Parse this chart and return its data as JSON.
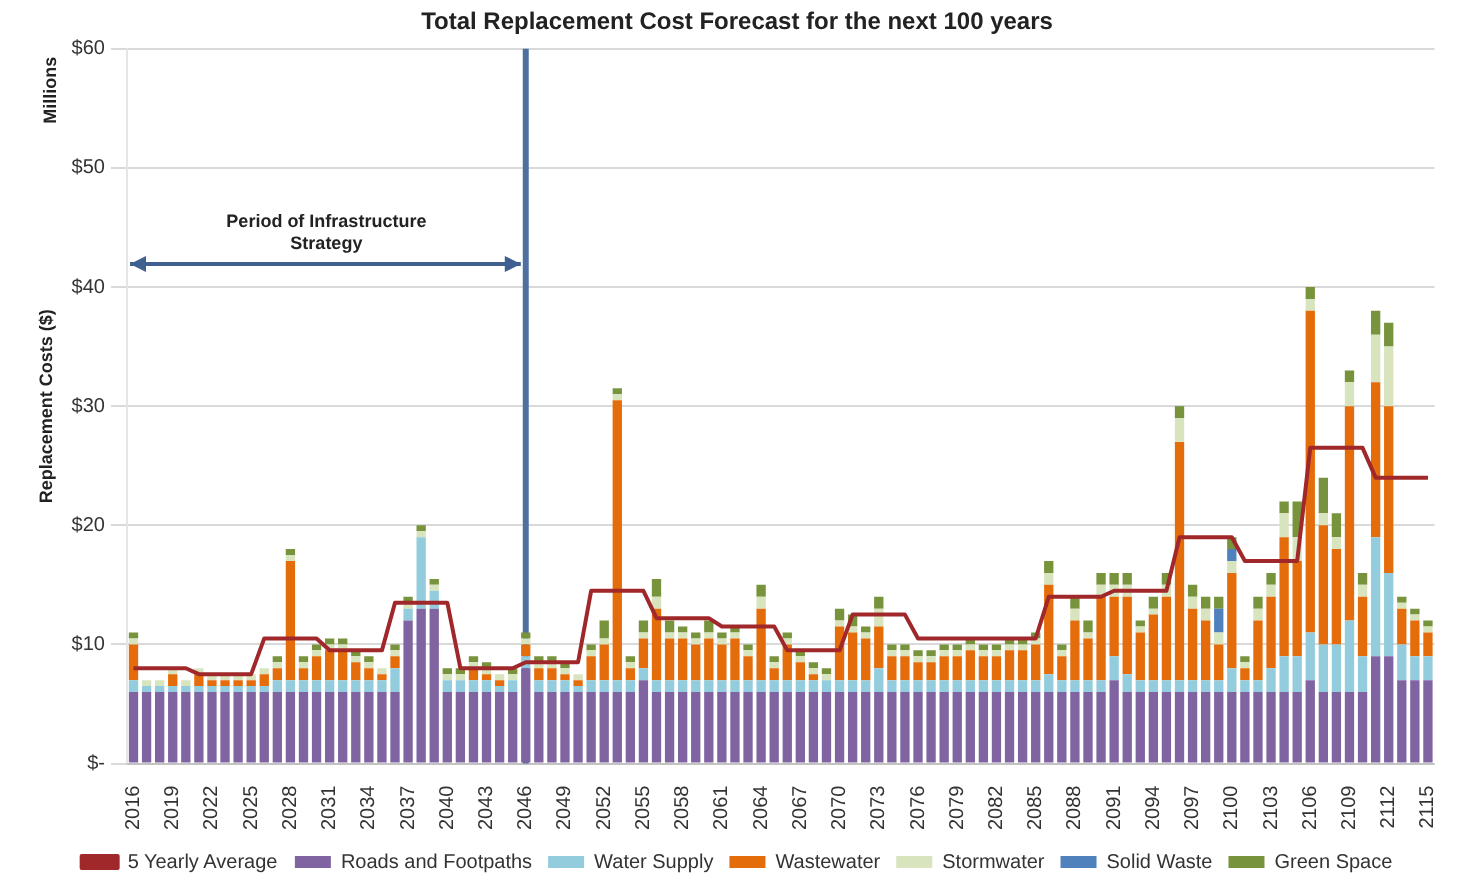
{
  "chart_data": {
    "type": "bar",
    "title": "Total Replacement Cost Forecast for the next 100 years",
    "ylabel": "Replacement Costs ($)",
    "annotations": [
      "Millions",
      "Period of Infrastructure Strategy"
    ],
    "categories": [
      "2016",
      null,
      null,
      "2019",
      null,
      null,
      "2022",
      null,
      null,
      "2025",
      null,
      null,
      "2028",
      null,
      null,
      "2031",
      null,
      null,
      "2034",
      null,
      null,
      "2037",
      null,
      null,
      "2040",
      null,
      null,
      "2043",
      null,
      null,
      "2046",
      null,
      null,
      "2049",
      null,
      null,
      "2052",
      null,
      null,
      "2055",
      null,
      null,
      "2058",
      null,
      null,
      "2061",
      null,
      null,
      "2064",
      null,
      null,
      "2067",
      null,
      null,
      "2070",
      null,
      null,
      "2073",
      null,
      null,
      "2076",
      null,
      null,
      "2079",
      null,
      null,
      "2082",
      null,
      null,
      "2085",
      null,
      null,
      "2088",
      null,
      null,
      "2091",
      null,
      null,
      "2094",
      null,
      null,
      "2097",
      null,
      null,
      "2100",
      null,
      null,
      "2103",
      null,
      null,
      "2106",
      null,
      null,
      "2109",
      null,
      null,
      "2112",
      null,
      null,
      "2115"
    ],
    "stacked": true,
    "ylim": [
      0,
      60
    ],
    "yticks": [
      {
        "value": 0,
        "label": "$-"
      },
      {
        "value": 10,
        "label": "$10"
      },
      {
        "value": 20,
        "label": "$20"
      },
      {
        "value": 30,
        "label": "$30"
      },
      {
        "value": 40,
        "label": "$40"
      },
      {
        "value": 50,
        "label": "$50"
      },
      {
        "value": 60,
        "label": "$60"
      }
    ],
    "grid": "y",
    "legend": "bottom",
    "ref_lines": [
      {
        "axis": "x",
        "value": "2046",
        "color": "#4f6fa0"
      }
    ],
    "series": [
      {
        "name": "Roads and Footpaths",
        "color": "#8064a2",
        "values": [
          6,
          6,
          6,
          6,
          6,
          6,
          6,
          6,
          6,
          6,
          6,
          6,
          6,
          6,
          6,
          6,
          6,
          6,
          6,
          6,
          6,
          12,
          13,
          13,
          6,
          6,
          6,
          6,
          6,
          6,
          8,
          6,
          6,
          6,
          6,
          6,
          6,
          6,
          6,
          7,
          6,
          6,
          6,
          6,
          6,
          6,
          6,
          6,
          6,
          6,
          6,
          6,
          6,
          6,
          6,
          6,
          6,
          6,
          6,
          6,
          6,
          6,
          6,
          6,
          6,
          6,
          6,
          6,
          6,
          6,
          6,
          6,
          6,
          6,
          6,
          7,
          6,
          6,
          6,
          6,
          6,
          6,
          6,
          6,
          6,
          6,
          6,
          6,
          6,
          6,
          7,
          6,
          6,
          6,
          6,
          9,
          9,
          7,
          7,
          7
        ]
      },
      {
        "name": "Water Supply",
        "color": "#93cddd",
        "values": [
          1,
          0.5,
          0.5,
          0.5,
          0.5,
          0.5,
          0.5,
          0.5,
          0.5,
          0.5,
          0.5,
          1,
          1,
          1,
          1,
          1,
          1,
          1,
          1,
          1,
          2,
          1,
          6,
          1.5,
          1,
          1,
          1,
          1,
          0.5,
          1,
          1,
          1,
          1,
          1,
          0.5,
          1,
          1,
          1,
          1,
          1,
          1,
          1,
          1,
          1,
          1,
          1,
          1,
          1,
          1,
          1,
          1,
          1,
          1,
          1,
          1,
          1,
          1,
          2,
          1,
          1,
          1,
          1,
          1,
          1,
          1,
          1,
          1,
          1,
          1,
          1,
          1.5,
          1,
          1,
          1,
          1,
          2,
          1.5,
          1,
          1,
          1,
          1,
          1,
          1,
          1,
          2,
          1,
          1,
          2,
          3,
          3,
          4,
          4,
          4,
          6,
          3,
          10,
          7,
          3,
          2,
          2
        ]
      },
      {
        "name": "Wastewater",
        "color": "#e46c0a",
        "values": [
          3,
          0,
          0,
          1,
          0,
          1,
          0.5,
          0.5,
          0.5,
          0.5,
          1,
          1,
          10,
          1,
          2,
          2.5,
          2.5,
          1.5,
          1,
          0.5,
          1,
          0,
          0,
          0,
          0,
          0,
          1,
          0.5,
          0.5,
          0,
          1,
          1,
          1,
          0.5,
          0.5,
          2,
          3,
          23.5,
          1,
          2.5,
          6,
          3.5,
          3.5,
          3,
          3.5,
          3,
          3.5,
          2,
          6,
          1,
          3,
          1.5,
          0.5,
          0,
          4.5,
          4,
          3.5,
          3.5,
          2,
          2,
          1.5,
          1.5,
          2,
          2,
          2.5,
          2,
          2,
          2.5,
          2.5,
          3,
          7.5,
          2,
          5,
          3.5,
          7,
          5,
          6.5,
          4,
          5.5,
          7,
          20,
          6,
          5,
          3,
          8,
          1,
          5,
          6,
          10,
          8,
          27,
          10,
          8,
          18,
          5,
          13,
          14,
          3,
          3,
          2
        ]
      },
      {
        "name": "Stormwater",
        "color": "#d7e4bd",
        "values": [
          0.5,
          0.5,
          0.5,
          0.5,
          0.5,
          0.5,
          0.5,
          0.5,
          0.5,
          0.5,
          0.5,
          0.5,
          0.5,
          0.5,
          0.5,
          0.5,
          0.5,
          0.5,
          0.5,
          0.5,
          0.5,
          0.5,
          0.5,
          0.5,
          0.5,
          0.5,
          0.5,
          0.5,
          0.5,
          0.5,
          0.5,
          0.5,
          0.5,
          0.5,
          0.5,
          0.5,
          0.5,
          0.5,
          0.5,
          0.5,
          1,
          0.5,
          0.5,
          0.5,
          0.5,
          0.5,
          0.5,
          0.5,
          1,
          0.5,
          0.5,
          0.5,
          0.5,
          0.5,
          0.5,
          0.5,
          0.5,
          1.5,
          0.5,
          0.5,
          0.5,
          0.5,
          0.5,
          0.5,
          0.5,
          0.5,
          0.5,
          0.5,
          0.5,
          0.5,
          1,
          0.5,
          1,
          0.5,
          1,
          1,
          1,
          0.5,
          0.5,
          1,
          2,
          1,
          1,
          1,
          1,
          0.5,
          1,
          1,
          2,
          2,
          1,
          1,
          1,
          2,
          1,
          4,
          5,
          0.5,
          0.5,
          0.5
        ]
      },
      {
        "name": "Solid Waste",
        "color": "#4f81bd",
        "values": [
          0,
          0,
          0,
          0,
          0,
          0,
          0,
          0,
          0,
          0,
          0,
          0,
          0,
          0,
          0,
          0,
          0,
          0,
          0,
          0,
          0,
          0,
          0,
          0,
          0,
          0,
          0,
          0,
          0,
          0,
          0,
          0,
          0,
          0,
          0,
          0,
          0,
          0,
          0,
          0,
          0,
          0,
          0,
          0,
          0,
          0,
          0,
          0,
          0,
          0,
          0,
          0,
          0,
          0,
          0,
          0,
          0,
          0,
          0,
          0,
          0,
          0,
          0,
          0,
          0,
          0,
          0,
          0,
          0,
          0,
          0,
          0,
          0,
          0,
          0,
          0,
          0,
          0,
          0,
          0,
          0,
          0,
          0,
          2,
          1,
          0,
          0,
          0,
          0,
          0,
          0,
          0,
          0,
          0,
          0,
          0,
          0,
          0,
          0,
          0
        ]
      },
      {
        "name": "Green Space",
        "color": "#77933c",
        "values": [
          0.5,
          0,
          0,
          0,
          0,
          0,
          0,
          0,
          0,
          0,
          0,
          0.5,
          0.5,
          0.5,
          0.5,
          0.5,
          0.5,
          0.5,
          0.5,
          0,
          0.5,
          0.5,
          0.5,
          0.5,
          0.5,
          0.5,
          0.5,
          0.5,
          0,
          0.5,
          0.5,
          0.5,
          0.5,
          0.5,
          0,
          0.5,
          1.5,
          0.5,
          0.5,
          1,
          1.5,
          1,
          0.5,
          0.5,
          1,
          0.5,
          0.5,
          0.5,
          1,
          0.5,
          0.5,
          0.5,
          0.5,
          0.5,
          1,
          1,
          0.5,
          1,
          0.5,
          0.5,
          0.5,
          0.5,
          0.5,
          0.5,
          0.5,
          0.5,
          0.5,
          0.5,
          0.5,
          0.5,
          1,
          0.5,
          1,
          1,
          1,
          1,
          1,
          0.5,
          1,
          1,
          1,
          1,
          1,
          1,
          1,
          0.5,
          1,
          1,
          1,
          3,
          1,
          3,
          2,
          1,
          1,
          2,
          2,
          0.5,
          0.5,
          0.5
        ]
      },
      {
        "name": "5 Yearly Average",
        "type": "line",
        "color": "#a0282a",
        "marker": "none",
        "values": [
          8,
          8,
          8,
          8,
          8,
          7.5,
          7.5,
          7.5,
          7.5,
          7.5,
          10.5,
          10.5,
          10.5,
          10.5,
          10.5,
          9.5,
          9.5,
          9.5,
          9.5,
          9.5,
          13.5,
          13.5,
          13.5,
          13.5,
          13.5,
          8,
          8,
          8,
          8,
          8,
          8.5,
          8.5,
          8.5,
          8.5,
          8.5,
          14.5,
          14.5,
          14.5,
          14.5,
          14.5,
          12.2,
          12.2,
          12.2,
          12.2,
          12.2,
          11.5,
          11.5,
          11.5,
          11.5,
          11.5,
          9.5,
          9.5,
          9.5,
          9.5,
          9.5,
          12.5,
          12.5,
          12.5,
          12.5,
          12.5,
          10.5,
          10.5,
          10.5,
          10.5,
          10.5,
          10.5,
          10.5,
          10.5,
          10.5,
          10.5,
          14,
          14,
          14,
          14,
          14,
          14.5,
          14.5,
          14.5,
          14.5,
          14.5,
          19,
          19,
          19,
          19,
          19,
          17,
          17,
          17,
          17,
          17,
          26.5,
          26.5,
          26.5,
          26.5,
          26.5,
          24,
          24,
          24,
          24,
          24
        ]
      }
    ]
  }
}
